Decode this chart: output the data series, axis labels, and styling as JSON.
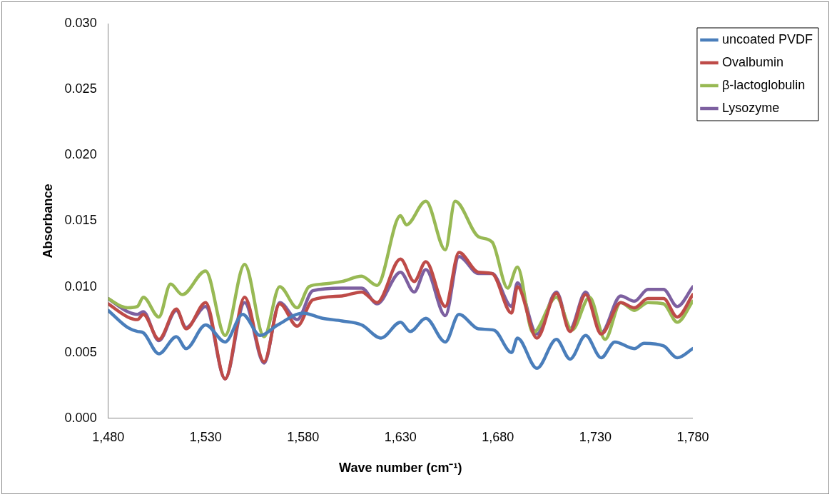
{
  "chart_data": {
    "type": "line",
    "xlabel": "Wave number (cm⁻¹)",
    "ylabel": "Absorbance",
    "xlim": [
      1480,
      1780
    ],
    "xticks": [
      {
        "value": 1480,
        "label": "1,480"
      },
      {
        "value": 1530,
        "label": "1,530"
      },
      {
        "value": 1580,
        "label": "1,580"
      },
      {
        "value": 1630,
        "label": "1,630"
      },
      {
        "value": 1680,
        "label": "1,680"
      },
      {
        "value": 1730,
        "label": "1,730"
      },
      {
        "value": 1780,
        "label": "1,780"
      }
    ],
    "ylim": [
      0,
      0.03
    ],
    "yticks": [
      {
        "value": 0,
        "label": "0.000"
      },
      {
        "value": 0.005,
        "label": "0.005"
      },
      {
        "value": 0.01,
        "label": "0.010"
      },
      {
        "value": 0.015,
        "label": "0.015"
      },
      {
        "value": 0.02,
        "label": "0.020"
      },
      {
        "value": 0.025,
        "label": "0.025"
      },
      {
        "value": 0.03,
        "label": "0.030"
      }
    ],
    "grid": false,
    "legend": "top right",
    "marker": "none",
    "line_style": "solid",
    "series": [
      {
        "name": "uncoated PVDF",
        "color": "#4a7ebb",
        "x": [
          1480,
          1490,
          1495,
          1498,
          1506,
          1515,
          1520,
          1530,
          1540,
          1549,
          1558,
          1567,
          1580,
          1590,
          1600,
          1610,
          1620,
          1630,
          1635,
          1643,
          1653,
          1660,
          1670,
          1678,
          1687,
          1690,
          1700,
          1710,
          1717,
          1725,
          1733,
          1740,
          1750,
          1755,
          1765,
          1772,
          1780
        ],
        "values": [
          0.0082,
          0.0069,
          0.0066,
          0.0065,
          0.0049,
          0.0062,
          0.0053,
          0.0071,
          0.0058,
          0.0079,
          0.0063,
          0.0071,
          0.008,
          0.0076,
          0.0074,
          0.0071,
          0.0061,
          0.0073,
          0.0066,
          0.0076,
          0.0058,
          0.0079,
          0.0068,
          0.0067,
          0.005,
          0.0061,
          0.0038,
          0.006,
          0.0045,
          0.0063,
          0.0046,
          0.0058,
          0.0053,
          0.0057,
          0.0055,
          0.0046,
          0.0053
        ]
      },
      {
        "name": "Ovalbumin",
        "color": "#be4b48",
        "x": [
          1480,
          1490,
          1495,
          1498,
          1506,
          1515,
          1520,
          1530,
          1540,
          1550,
          1560,
          1568,
          1577,
          1585,
          1600,
          1610,
          1618,
          1630,
          1637,
          1643,
          1653,
          1660,
          1670,
          1677,
          1687,
          1690,
          1700,
          1710,
          1717,
          1725,
          1733,
          1743,
          1750,
          1757,
          1765,
          1772,
          1780
        ],
        "values": [
          0.0087,
          0.0077,
          0.0075,
          0.0079,
          0.006,
          0.0083,
          0.0068,
          0.0088,
          0.003,
          0.0092,
          0.0043,
          0.0087,
          0.007,
          0.009,
          0.0093,
          0.0096,
          0.0088,
          0.0121,
          0.0104,
          0.0119,
          0.0085,
          0.0126,
          0.0111,
          0.011,
          0.008,
          0.01,
          0.0061,
          0.0095,
          0.0066,
          0.0094,
          0.0064,
          0.0088,
          0.0084,
          0.0091,
          0.0091,
          0.0077,
          0.0094
        ]
      },
      {
        "name": "β-lactoglobulin",
        "color": "#98b954",
        "x": [
          1480,
          1487,
          1490,
          1495,
          1498,
          1506,
          1512,
          1518,
          1530,
          1540,
          1550,
          1560,
          1568,
          1577,
          1583,
          1590,
          1600,
          1610,
          1618,
          1630,
          1633,
          1643,
          1653,
          1658,
          1670,
          1677,
          1685,
          1690,
          1698,
          1710,
          1718,
          1727,
          1735,
          1743,
          1750,
          1757,
          1765,
          1772,
          1780
        ],
        "values": [
          0.0091,
          0.0085,
          0.0084,
          0.0085,
          0.0092,
          0.0077,
          0.0102,
          0.0094,
          0.0112,
          0.0063,
          0.0117,
          0.0062,
          0.01,
          0.0084,
          0.01,
          0.0102,
          0.0104,
          0.0108,
          0.0101,
          0.0154,
          0.0147,
          0.0165,
          0.0128,
          0.0165,
          0.0138,
          0.0134,
          0.0099,
          0.0115,
          0.0065,
          0.0092,
          0.0067,
          0.0092,
          0.006,
          0.0088,
          0.0082,
          0.0088,
          0.0087,
          0.0073,
          0.0089
        ]
      },
      {
        "name": "Lysozyme",
        "color": "#7d60a0",
        "x": [
          1480,
          1490,
          1495,
          1498,
          1506,
          1515,
          1520,
          1530,
          1540,
          1550,
          1560,
          1568,
          1577,
          1585,
          1600,
          1610,
          1618,
          1630,
          1637,
          1643,
          1653,
          1660,
          1670,
          1677,
          1687,
          1690,
          1700,
          1710,
          1717,
          1725,
          1733,
          1743,
          1750,
          1757,
          1765,
          1772,
          1780
        ],
        "values": [
          0.0091,
          0.0081,
          0.0079,
          0.0081,
          0.0059,
          0.0082,
          0.0069,
          0.0085,
          0.003,
          0.0088,
          0.0042,
          0.0088,
          0.0075,
          0.0097,
          0.0099,
          0.0099,
          0.0087,
          0.0111,
          0.0096,
          0.0113,
          0.0078,
          0.0123,
          0.011,
          0.011,
          0.0085,
          0.0103,
          0.0064,
          0.0096,
          0.0068,
          0.0096,
          0.0065,
          0.0093,
          0.0089,
          0.0098,
          0.0098,
          0.0085,
          0.01
        ]
      }
    ]
  }
}
